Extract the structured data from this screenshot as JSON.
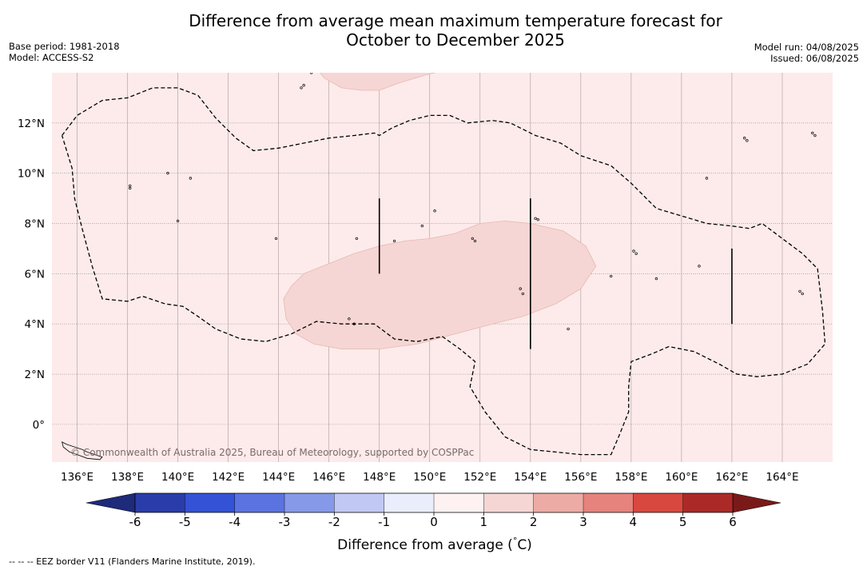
{
  "title_line1": "Difference from average mean maximum temperature forecast for",
  "title_line2": "October to December 2025",
  "base_period": "Base period: 1981-2018",
  "model": "Model: ACCESS-S2",
  "model_run": "Model run: 04/08/2025",
  "issued": "Issued: 06/08/2025",
  "copyright": "© Commonwealth of Australia 2025, Bureau of Meteorology, supported by COSPPac",
  "footnote": "--  --  -- EEZ border V11 (Flanders Marine Institute, 2019).",
  "map": {
    "lon_range": [
      135.0,
      166.0
    ],
    "lat_range": [
      -1.5,
      14.0
    ],
    "lon_ticks": [
      {
        "value": 136,
        "label": "136°E"
      },
      {
        "value": 138,
        "label": "138°E"
      },
      {
        "value": 140,
        "label": "140°E"
      },
      {
        "value": 142,
        "label": "142°E"
      },
      {
        "value": 144,
        "label": "144°E"
      },
      {
        "value": 146,
        "label": "146°E"
      },
      {
        "value": 148,
        "label": "148°E"
      },
      {
        "value": 150,
        "label": "150°E"
      },
      {
        "value": 152,
        "label": "152°E"
      },
      {
        "value": 154,
        "label": "154°E"
      },
      {
        "value": 156,
        "label": "156°E"
      },
      {
        "value": 158,
        "label": "158°E"
      },
      {
        "value": 160,
        "label": "160°E"
      },
      {
        "value": 162,
        "label": "162°E"
      },
      {
        "value": 164,
        "label": "164°E"
      }
    ],
    "lat_ticks": [
      {
        "value": 0,
        "label": "0°"
      },
      {
        "value": 2,
        "label": "2°N"
      },
      {
        "value": 4,
        "label": "4°N"
      },
      {
        "value": 6,
        "label": "6°N"
      },
      {
        "value": 8,
        "label": "8°N"
      },
      {
        "value": 10,
        "label": "10°N"
      },
      {
        "value": 12,
        "label": "12°N"
      }
    ],
    "background_fill": "#fcebea",
    "anomaly_fill": "#f5d6d4",
    "eez_border": [
      [
        135.4,
        11.5
      ],
      [
        136.0,
        12.3
      ],
      [
        137.0,
        12.9
      ],
      [
        138.0,
        13.0
      ],
      [
        139.0,
        13.4
      ],
      [
        140.0,
        13.4
      ],
      [
        140.8,
        13.1
      ],
      [
        141.5,
        12.2
      ],
      [
        142.3,
        11.4
      ],
      [
        143.0,
        10.9
      ],
      [
        144.0,
        11.0
      ],
      [
        145.0,
        11.2
      ],
      [
        146.0,
        11.4
      ],
      [
        147.0,
        11.5
      ],
      [
        147.8,
        11.6
      ],
      [
        148.0,
        11.5
      ],
      [
        148.5,
        11.8
      ],
      [
        149.2,
        12.1
      ],
      [
        150.0,
        12.3
      ],
      [
        150.8,
        12.3
      ],
      [
        151.5,
        12.0
      ],
      [
        152.5,
        12.1
      ],
      [
        153.2,
        12.0
      ],
      [
        154.2,
        11.5
      ],
      [
        155.2,
        11.2
      ],
      [
        156.0,
        10.7
      ],
      [
        157.2,
        10.3
      ],
      [
        158.0,
        9.6
      ],
      [
        159.0,
        8.6
      ],
      [
        160.0,
        8.3
      ],
      [
        161.0,
        8.0
      ],
      [
        162.0,
        7.9
      ],
      [
        162.7,
        7.8
      ],
      [
        163.2,
        8.0
      ],
      [
        164.0,
        7.4
      ],
      [
        164.8,
        6.8
      ],
      [
        165.4,
        6.2
      ],
      [
        165.6,
        4.5
      ],
      [
        165.7,
        3.2
      ],
      [
        165.0,
        2.4
      ],
      [
        164.0,
        2.0
      ],
      [
        163.0,
        1.9
      ],
      [
        162.2,
        2.0
      ],
      [
        161.5,
        2.4
      ],
      [
        160.5,
        2.9
      ],
      [
        159.5,
        3.1
      ],
      [
        158.8,
        2.8
      ],
      [
        158.0,
        2.5
      ],
      [
        157.9,
        1.5
      ],
      [
        157.9,
        0.5
      ],
      [
        157.5,
        -0.5
      ],
      [
        157.2,
        -1.2
      ],
      [
        156.0,
        -1.2
      ],
      [
        155.0,
        -1.1
      ],
      [
        154.0,
        -1.0
      ],
      [
        153.0,
        -0.5
      ],
      [
        152.2,
        0.5
      ],
      [
        151.6,
        1.5
      ],
      [
        151.8,
        2.5
      ],
      [
        151.2,
        3.0
      ],
      [
        150.5,
        3.5
      ],
      [
        149.5,
        3.3
      ],
      [
        148.6,
        3.4
      ],
      [
        147.8,
        4.0
      ],
      [
        146.5,
        4.0
      ],
      [
        145.5,
        4.1
      ],
      [
        144.5,
        3.6
      ],
      [
        143.5,
        3.3
      ],
      [
        142.5,
        3.4
      ],
      [
        141.5,
        3.8
      ],
      [
        140.8,
        4.3
      ],
      [
        140.2,
        4.7
      ],
      [
        139.5,
        4.8
      ],
      [
        138.6,
        5.1
      ],
      [
        138.0,
        4.9
      ],
      [
        137.0,
        5.0
      ],
      [
        136.6,
        6.3
      ],
      [
        136.2,
        7.8
      ],
      [
        135.9,
        9.0
      ],
      [
        135.8,
        10.2
      ],
      [
        135.4,
        11.5
      ]
    ],
    "anomaly_region_main": [
      [
        144.5,
        5.5
      ],
      [
        144.2,
        5.0
      ],
      [
        144.3,
        4.2
      ],
      [
        144.7,
        3.6
      ],
      [
        145.4,
        3.2
      ],
      [
        146.5,
        3.0
      ],
      [
        148.0,
        3.0
      ],
      [
        149.5,
        3.2
      ],
      [
        151.0,
        3.6
      ],
      [
        152.5,
        4.0
      ],
      [
        153.7,
        4.3
      ],
      [
        155.0,
        4.8
      ],
      [
        156.0,
        5.4
      ],
      [
        156.6,
        6.3
      ],
      [
        156.2,
        7.1
      ],
      [
        155.3,
        7.7
      ],
      [
        154.0,
        8.0
      ],
      [
        153.0,
        8.1
      ],
      [
        152.0,
        8.0
      ],
      [
        151.0,
        7.6
      ],
      [
        150.0,
        7.4
      ],
      [
        149.0,
        7.3
      ],
      [
        148.0,
        7.1
      ],
      [
        147.0,
        6.8
      ],
      [
        146.0,
        6.4
      ],
      [
        145.0,
        6.0
      ],
      [
        144.5,
        5.5
      ]
    ],
    "anomaly_region_north": [
      [
        145.5,
        14.2
      ],
      [
        145.8,
        13.8
      ],
      [
        146.5,
        13.4
      ],
      [
        147.3,
        13.3
      ],
      [
        148.0,
        13.3
      ],
      [
        148.8,
        13.6
      ],
      [
        149.8,
        13.9
      ],
      [
        151.0,
        14.2
      ],
      [
        145.5,
        14.2
      ]
    ],
    "legend_bars": [
      {
        "lon": 148,
        "lat": [
          6.0,
          9.0
        ]
      },
      {
        "lon": 154,
        "lat": [
          3.0,
          9.0
        ]
      },
      {
        "lon": 162,
        "lat": [
          4.0,
          7.0
        ]
      }
    ],
    "islands": [
      [
        146.8,
        4.2
      ],
      [
        147.0,
        4.0
      ],
      [
        149.7,
        7.9
      ],
      [
        151.7,
        7.4
      ],
      [
        151.8,
        7.3
      ],
      [
        153.6,
        5.4
      ],
      [
        153.7,
        5.2
      ],
      [
        154.2,
        8.2
      ],
      [
        154.3,
        8.15
      ],
      [
        155.5,
        3.8
      ],
      [
        157.2,
        5.9
      ],
      [
        158.1,
        6.9
      ],
      [
        158.2,
        6.8
      ],
      [
        159.0,
        5.8
      ],
      [
        160.7,
        6.3
      ],
      [
        161.0,
        9.8
      ],
      [
        162.5,
        11.4
      ],
      [
        162.6,
        11.3
      ],
      [
        164.7,
        5.3
      ],
      [
        164.8,
        5.2
      ],
      [
        165.2,
        11.6
      ],
      [
        165.3,
        11.5
      ],
      [
        138.1,
        9.5
      ],
      [
        138.1,
        9.4
      ],
      [
        140.0,
        8.1
      ],
      [
        143.9,
        7.4
      ],
      [
        147.1,
        7.4
      ],
      [
        148.6,
        7.3
      ],
      [
        150.2,
        8.5
      ],
      [
        139.6,
        10.0
      ],
      [
        140.5,
        9.8
      ],
      [
        144.9,
        13.4
      ],
      [
        145.0,
        13.5
      ],
      [
        145.3,
        14.0
      ],
      [
        145.7,
        14.1
      ]
    ],
    "coastline_sw": [
      [
        135.4,
        -0.7
      ],
      [
        135.6,
        -0.8
      ],
      [
        135.9,
        -0.9
      ],
      [
        136.2,
        -1.0
      ],
      [
        136.4,
        -1.1
      ],
      [
        136.7,
        -1.2
      ],
      [
        137.0,
        -1.3
      ],
      [
        136.9,
        -1.4
      ],
      [
        136.4,
        -1.35
      ],
      [
        136.0,
        -1.2
      ],
      [
        135.7,
        -1.1
      ],
      [
        135.45,
        -0.9
      ],
      [
        135.4,
        -0.7
      ]
    ]
  },
  "colorbar": {
    "title": "Difference from average (°C)",
    "title_prefix": "Difference from average (",
    "title_degree": "°",
    "title_suffix": "C)",
    "tick_labels": [
      "-6",
      "-5",
      "-4",
      "-3",
      "-2",
      "-1",
      "0",
      "1",
      "2",
      "3",
      "4",
      "5",
      "6"
    ],
    "colors": [
      "#2a3ca9",
      "#3352d6",
      "#5a73e0",
      "#8699e8",
      "#c1c8f4",
      "#e9edfc",
      "#fdf1f1",
      "#f5d6d4",
      "#edaba6",
      "#e5837c",
      "#d8483f",
      "#ab2a27"
    ],
    "under_color": "#1e2a7a",
    "over_color": "#7a1a18"
  }
}
